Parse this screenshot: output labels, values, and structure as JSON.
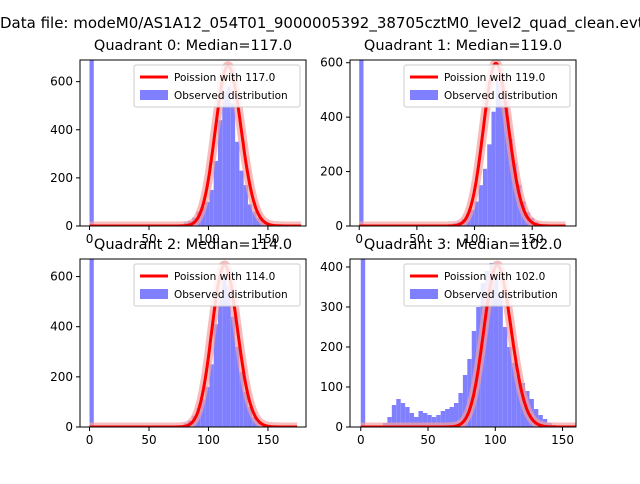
{
  "figure": {
    "suptitle": "Data file: modeM0/AS1A12_054T01_9000005392_38705cztM0_level2_quad_clean.evt"
  },
  "chart_data": [
    {
      "type": "bar",
      "title": "Quadrant 0: Median=117.0",
      "xlim": [
        -8,
        182
      ],
      "ylim": [
        0,
        690
      ],
      "xticks": [
        0,
        50,
        100,
        150
      ],
      "yticks": [
        0,
        200,
        400,
        600
      ],
      "bin_width": 3.6,
      "bins_x": [
        0,
        75.6,
        79.2,
        82.8,
        86.4,
        90,
        93.6,
        97.2,
        100.8,
        104.4,
        108,
        111.6,
        115.2,
        118.8,
        122.4,
        126,
        129.6,
        133.2,
        136.8,
        140.4,
        144,
        147.6,
        151.2,
        154.8,
        158.4
      ],
      "bins_y": [
        690,
        5,
        15,
        20,
        35,
        60,
        80,
        100,
        150,
        270,
        440,
        560,
        580,
        510,
        350,
        230,
        170,
        90,
        60,
        35,
        20,
        10,
        5,
        3,
        2
      ],
      "legend": [
        "Poission with 117.0",
        "Observed distribution"
      ],
      "poisson_mean": 117.0,
      "poisson_peak": 665
    },
    {
      "type": "bar",
      "title": "Quadrant 1: Median=119.0",
      "xlim": [
        -8,
        188
      ],
      "ylim": [
        0,
        610
      ],
      "xticks": [
        0,
        50,
        100,
        150
      ],
      "yticks": [
        0,
        200,
        400,
        600
      ],
      "bin_width": 3.7,
      "bins_x": [
        0,
        37,
        77.7,
        81.4,
        85.1,
        88.8,
        92.5,
        96.2,
        99.9,
        103.6,
        107.3,
        111,
        114.7,
        118.4,
        122.1,
        125.8,
        129.5,
        133.2,
        136.9,
        140.6,
        144.3,
        148,
        151.7,
        155.4,
        159.1
      ],
      "bins_y": [
        610,
        5,
        5,
        10,
        15,
        25,
        40,
        60,
        90,
        150,
        210,
        300,
        420,
        540,
        560,
        460,
        320,
        230,
        150,
        90,
        50,
        30,
        15,
        5,
        3
      ],
      "legend": [
        "Poission with 119.0",
        "Observed distribution"
      ],
      "poisson_mean": 119.0,
      "poisson_peak": 597
    },
    {
      "type": "bar",
      "title": "Quadrant 2: Median=114.0",
      "xlim": [
        -8,
        182
      ],
      "ylim": [
        0,
        670
      ],
      "xticks": [
        0,
        50,
        100,
        150
      ],
      "yticks": [
        0,
        200,
        400,
        600
      ],
      "bin_width": 3.6,
      "bins_x": [
        0,
        75.6,
        79.2,
        82.8,
        86.4,
        90,
        93.6,
        97.2,
        100.8,
        104.4,
        108,
        111.6,
        115.2,
        118.8,
        122.4,
        126,
        129.6,
        133.2,
        136.8,
        140.4,
        144,
        147.6,
        151.2,
        154.8
      ],
      "bins_y": [
        670,
        5,
        15,
        25,
        45,
        75,
        110,
        160,
        250,
        410,
        520,
        600,
        560,
        440,
        320,
        220,
        140,
        80,
        40,
        20,
        10,
        5,
        3,
        2
      ],
      "legend": [
        "Poission with 114.0",
        "Observed distribution"
      ],
      "poisson_mean": 114.0,
      "poisson_peak": 645
    },
    {
      "type": "bar",
      "title": "Quadrant 3: Median=102.0",
      "xlim": [
        -8,
        160
      ],
      "ylim": [
        0,
        420
      ],
      "xticks": [
        0,
        50,
        100,
        150
      ],
      "yticks": [
        0,
        100,
        200,
        300,
        400
      ],
      "bin_width": 3.3,
      "bins_x": [
        0,
        16.5,
        19.8,
        23.1,
        26.4,
        29.7,
        33,
        36.3,
        39.6,
        42.9,
        46.2,
        49.5,
        52.8,
        56.1,
        59.4,
        62.7,
        66,
        69.3,
        72.6,
        75.9,
        79.2,
        82.5,
        85.8,
        89.1,
        92.4,
        95.7,
        99,
        102.3,
        105.6,
        108.9,
        112.2,
        115.5,
        118.8,
        122.1,
        125.4,
        128.7,
        132,
        135.3,
        138.6,
        141.9
      ],
      "bins_y": [
        420,
        10,
        25,
        55,
        70,
        60,
        50,
        35,
        25,
        40,
        35,
        30,
        25,
        30,
        40,
        45,
        50,
        60,
        85,
        130,
        170,
        240,
        300,
        360,
        390,
        410,
        380,
        330,
        250,
        200,
        160,
        130,
        110,
        90,
        70,
        45,
        30,
        20,
        10,
        5
      ],
      "legend": [
        "Poission with 102.0",
        "Observed distribution"
      ],
      "poisson_mean": 102.0,
      "poisson_peak": 404
    }
  ],
  "colors": {
    "bar": "#8080ff",
    "curve": "#ff0000",
    "curve_light": "#f5a0a0",
    "axis": "#000000"
  }
}
